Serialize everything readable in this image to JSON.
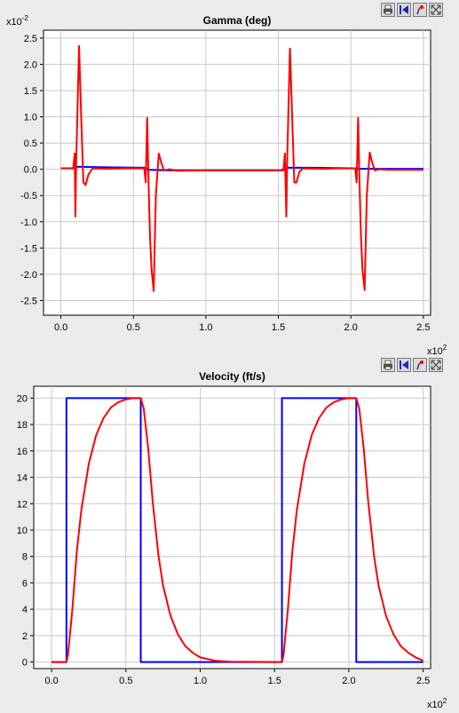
{
  "toolbar_icons": [
    "printer-icon",
    "reset-view-icon",
    "marker-tool-icon",
    "fit-view-icon"
  ],
  "chart_data": [
    {
      "type": "line",
      "title": "Gamma (deg)",
      "y_multiplier": "x10",
      "y_multiplier_exp": "-2",
      "x_multiplier": "x10",
      "x_multiplier_exp": "2",
      "xlim": [
        -0.12,
        2.55
      ],
      "ylim": [
        -2.78,
        2.65
      ],
      "xticks": [
        0.0,
        0.5,
        1.0,
        1.5,
        2.0,
        2.5
      ],
      "xtick_labels": [
        "0.0",
        "0.5",
        "1.0",
        "1.5",
        "2.0",
        "2.5"
      ],
      "yticks": [
        2.5,
        2.0,
        1.5,
        1.0,
        0.5,
        0.0,
        -0.5,
        -1.0,
        -1.5,
        -2.0,
        -2.5
      ],
      "ytick_labels": [
        "2.5",
        "2.0",
        "1.5",
        "1.0",
        "0.5",
        "0.0",
        "-0.5",
        "-1.0",
        "-1.5",
        "-2.0",
        "-2.5"
      ],
      "grid": true,
      "series": [
        {
          "color": "#0000ff",
          "points": [
            [
              0.0,
              0.02
            ],
            [
              0.095,
              0.02
            ],
            [
              0.1,
              0.05
            ],
            [
              0.25,
              0.04
            ],
            [
              0.58,
              0.03
            ],
            [
              0.6,
              -0.01
            ],
            [
              0.75,
              -0.02
            ],
            [
              1.52,
              -0.02
            ],
            [
              1.55,
              0.03
            ],
            [
              1.7,
              0.03
            ],
            [
              2.03,
              0.02
            ],
            [
              2.06,
              0.01
            ],
            [
              2.5,
              0.01
            ]
          ]
        },
        {
          "color": "#ff0000",
          "points": [
            [
              0.0,
              0.02
            ],
            [
              0.085,
              0.02
            ],
            [
              0.095,
              0.3
            ],
            [
              0.1,
              -0.9
            ],
            [
              0.105,
              0.1
            ],
            [
              0.115,
              1.2
            ],
            [
              0.125,
              2.35
            ],
            [
              0.14,
              1.0
            ],
            [
              0.155,
              -0.25
            ],
            [
              0.17,
              -0.3
            ],
            [
              0.19,
              -0.1
            ],
            [
              0.22,
              0.02
            ],
            [
              0.3,
              0.01
            ],
            [
              0.45,
              0.02
            ],
            [
              0.575,
              0.02
            ],
            [
              0.585,
              -0.25
            ],
            [
              0.595,
              0.98
            ],
            [
              0.605,
              -0.3
            ],
            [
              0.615,
              -1.3
            ],
            [
              0.625,
              -1.9
            ],
            [
              0.64,
              -2.32
            ],
            [
              0.655,
              -0.5
            ],
            [
              0.675,
              0.3
            ],
            [
              0.69,
              0.15
            ],
            [
              0.71,
              -0.02
            ],
            [
              0.75,
              0.0
            ],
            [
              0.8,
              -0.03
            ],
            [
              1.0,
              -0.02
            ],
            [
              1.5,
              -0.02
            ],
            [
              1.535,
              -0.02
            ],
            [
              1.545,
              0.3
            ],
            [
              1.555,
              -0.9
            ],
            [
              1.56,
              0.1
            ],
            [
              1.57,
              1.2
            ],
            [
              1.58,
              2.3
            ],
            [
              1.595,
              1.0
            ],
            [
              1.61,
              -0.25
            ],
            [
              1.625,
              -0.25
            ],
            [
              1.645,
              -0.05
            ],
            [
              1.67,
              0.02
            ],
            [
              1.8,
              0.01
            ],
            [
              1.9,
              0.02
            ],
            [
              2.03,
              0.02
            ],
            [
              2.04,
              -0.25
            ],
            [
              2.05,
              0.98
            ],
            [
              2.06,
              -0.3
            ],
            [
              2.07,
              -1.3
            ],
            [
              2.08,
              -1.9
            ],
            [
              2.095,
              -2.3
            ],
            [
              2.11,
              -0.5
            ],
            [
              2.13,
              0.32
            ],
            [
              2.145,
              0.15
            ],
            [
              2.165,
              -0.02
            ],
            [
              2.2,
              0.0
            ],
            [
              2.25,
              -0.01
            ],
            [
              2.5,
              -0.01
            ]
          ]
        }
      ]
    },
    {
      "type": "line",
      "title": "Velocity (ft/s)",
      "x_multiplier": "x10",
      "x_multiplier_exp": "2",
      "xlim": [
        -0.12,
        2.55
      ],
      "ylim": [
        -0.5,
        20.9
      ],
      "xticks": [
        0.0,
        0.5,
        1.0,
        1.5,
        2.0,
        2.5
      ],
      "xtick_labels": [
        "0.0",
        "0.5",
        "1.0",
        "1.5",
        "2.0",
        "2.5"
      ],
      "yticks": [
        20,
        18,
        16,
        14,
        12,
        10,
        8,
        6,
        4,
        2,
        0
      ],
      "ytick_labels": [
        "20",
        "18",
        "16",
        "14",
        "12",
        "10",
        "8",
        "6",
        "4",
        "2",
        "0"
      ],
      "grid": true,
      "series": [
        {
          "color": "#0000ff",
          "points": [
            [
              0.0,
              0.0
            ],
            [
              0.1,
              0.0
            ],
            [
              0.1,
              20.0
            ],
            [
              0.6,
              20.0
            ],
            [
              0.6,
              0.0
            ],
            [
              1.55,
              0.0
            ],
            [
              1.55,
              20.0
            ],
            [
              2.05,
              20.0
            ],
            [
              2.05,
              0.0
            ],
            [
              2.5,
              0.0
            ]
          ]
        },
        {
          "color": "#ff0000",
          "points": [
            [
              0.0,
              0.0
            ],
            [
              0.1,
              0.0
            ],
            [
              0.11,
              0.5
            ],
            [
              0.14,
              4.0
            ],
            [
              0.17,
              8.4
            ],
            [
              0.2,
              11.5
            ],
            [
              0.25,
              15.0
            ],
            [
              0.3,
              17.2
            ],
            [
              0.35,
              18.5
            ],
            [
              0.4,
              19.3
            ],
            [
              0.45,
              19.7
            ],
            [
              0.5,
              19.9
            ],
            [
              0.55,
              20.0
            ],
            [
              0.6,
              20.0
            ],
            [
              0.62,
              19.2
            ],
            [
              0.65,
              16.2
            ],
            [
              0.68,
              12.2
            ],
            [
              0.72,
              8.0
            ],
            [
              0.75,
              5.8
            ],
            [
              0.8,
              3.5
            ],
            [
              0.85,
              2.1
            ],
            [
              0.9,
              1.2
            ],
            [
              0.95,
              0.7
            ],
            [
              1.0,
              0.35
            ],
            [
              1.1,
              0.1
            ],
            [
              1.2,
              0.02
            ],
            [
              1.55,
              0.0
            ],
            [
              1.56,
              0.5
            ],
            [
              1.59,
              4.0
            ],
            [
              1.62,
              8.4
            ],
            [
              1.65,
              11.5
            ],
            [
              1.7,
              15.0
            ],
            [
              1.75,
              17.2
            ],
            [
              1.8,
              18.5
            ],
            [
              1.85,
              19.3
            ],
            [
              1.9,
              19.7
            ],
            [
              1.95,
              19.9
            ],
            [
              2.0,
              20.0
            ],
            [
              2.05,
              20.0
            ],
            [
              2.07,
              19.2
            ],
            [
              2.1,
              16.2
            ],
            [
              2.13,
              12.2
            ],
            [
              2.17,
              8.0
            ],
            [
              2.2,
              5.8
            ],
            [
              2.25,
              3.5
            ],
            [
              2.3,
              2.1
            ],
            [
              2.35,
              1.2
            ],
            [
              2.4,
              0.7
            ],
            [
              2.45,
              0.35
            ],
            [
              2.5,
              0.1
            ]
          ]
        }
      ]
    }
  ]
}
